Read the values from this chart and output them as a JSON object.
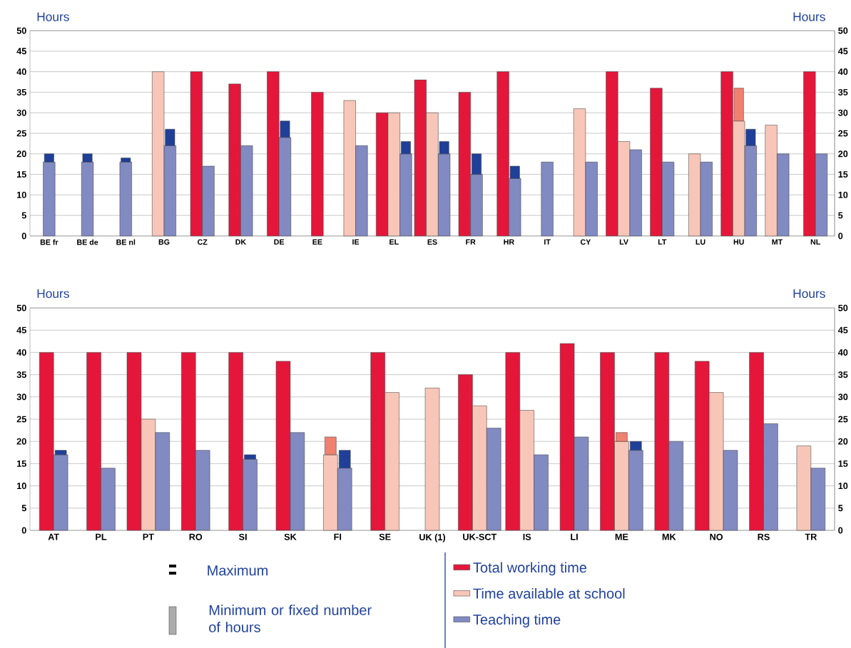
{
  "chart_data": [
    {
      "type": "bar",
      "ylabel": "Hours",
      "y2label": "Hours",
      "categories": [
        "BE fr",
        "BE de",
        "BE nl",
        "BG",
        "CZ",
        "DK",
        "DE",
        "EE",
        "IE",
        "EL",
        "ES",
        "FR",
        "HR",
        "IT",
        "CY",
        "LV",
        "LT",
        "LU",
        "HU",
        "MT",
        "NL"
      ],
      "series": [
        {
          "color": "#e4173b",
          "values": [
            null,
            null,
            null,
            null,
            40,
            37,
            40,
            35,
            null,
            30,
            38,
            35,
            40,
            null,
            null,
            40,
            36,
            null,
            40,
            null,
            40
          ]
        },
        {
          "color": "#f8c6b8",
          "values": [
            null,
            null,
            null,
            40,
            null,
            null,
            null,
            null,
            33,
            30,
            30,
            null,
            null,
            null,
            31,
            23,
            null,
            20,
            28,
            27,
            null
          ]
        },
        {
          "color": "#f08070",
          "base": [
            null,
            null,
            null,
            null,
            null,
            null,
            null,
            null,
            null,
            null,
            null,
            null,
            null,
            null,
            null,
            null,
            null,
            null,
            28,
            null,
            null
          ],
          "values": [
            null,
            null,
            null,
            null,
            null,
            null,
            null,
            null,
            null,
            null,
            null,
            null,
            null,
            null,
            null,
            null,
            null,
            null,
            8,
            null,
            null
          ]
        },
        {
          "color": "#828ac2",
          "values": [
            18,
            18,
            18,
            22,
            17,
            22,
            24,
            null,
            22,
            20,
            20,
            15,
            14,
            18,
            18,
            21,
            18,
            18,
            22,
            20,
            20
          ]
        },
        {
          "color": "#1f3f99",
          "base": [
            18,
            18,
            18,
            22,
            null,
            null,
            24,
            null,
            null,
            20,
            20,
            15,
            14,
            null,
            null,
            null,
            null,
            null,
            22,
            null,
            null
          ],
          "values": [
            2,
            2,
            1,
            4,
            null,
            null,
            4,
            null,
            null,
            3,
            3,
            5,
            3,
            null,
            null,
            null,
            null,
            null,
            4,
            null,
            null
          ]
        }
      ],
      "ylim": [
        0,
        50
      ],
      "yticks": [
        0,
        5,
        10,
        15,
        20,
        25,
        30,
        35,
        40,
        45,
        50
      ],
      "y2lim": [
        0,
        50
      ],
      "y2ticks": [
        0,
        5,
        10,
        15,
        20,
        25,
        30,
        35,
        40,
        45,
        50
      ],
      "grid": "y"
    },
    {
      "type": "bar",
      "ylabel": "Hours",
      "y2label": "Hours",
      "categories": [
        "AT",
        "PL",
        "PT",
        "RO",
        "SI",
        "SK",
        "FI",
        "SE",
        "UK (1)",
        "UK-SCT",
        "IS",
        "LI",
        "ME",
        "MK",
        "NO",
        "RS",
        "TR"
      ],
      "series": [
        {
          "name": "Total working time",
          "color": "#e4173b",
          "values": [
            40,
            40,
            40,
            40,
            40,
            38,
            null,
            40,
            null,
            35,
            40,
            42,
            40,
            40,
            38,
            40,
            null
          ]
        },
        {
          "name": "Time available at school",
          "color": "#f8c6b8",
          "values": [
            null,
            null,
            25,
            null,
            null,
            null,
            17,
            31,
            32,
            28,
            27,
            null,
            20,
            null,
            31,
            null,
            19
          ]
        },
        {
          "color": "#f08070",
          "base": [
            null,
            null,
            null,
            null,
            null,
            null,
            17,
            null,
            null,
            null,
            null,
            null,
            20,
            null,
            null,
            null,
            null
          ],
          "values": [
            null,
            null,
            null,
            null,
            null,
            null,
            4,
            null,
            null,
            null,
            null,
            null,
            2,
            null,
            null,
            null,
            null
          ]
        },
        {
          "name": "Teaching time",
          "color": "#828ac2",
          "values": [
            17,
            14,
            22,
            18,
            16,
            22,
            14,
            null,
            null,
            23,
            17,
            21,
            18,
            20,
            18,
            24,
            14
          ]
        },
        {
          "color": "#1f3f99",
          "base": [
            17,
            null,
            null,
            null,
            16,
            null,
            14,
            null,
            null,
            null,
            null,
            null,
            18,
            null,
            null,
            null,
            null
          ],
          "values": [
            1,
            null,
            null,
            null,
            1,
            null,
            4,
            null,
            null,
            null,
            null,
            null,
            2,
            null,
            null,
            null,
            null
          ]
        }
      ],
      "ylim": [
        0,
        50
      ],
      "yticks": [
        0,
        5,
        10,
        15,
        20,
        25,
        30,
        35,
        40,
        45,
        50
      ],
      "y2lim": [
        0,
        50
      ],
      "y2ticks": [
        0,
        5,
        10,
        15,
        20,
        25,
        30,
        35,
        40,
        45,
        50
      ],
      "grid": "y",
      "legend": "bottom",
      "annotations": [
        "Maximum",
        "Minimum or fixed number of hours"
      ]
    }
  ]
}
